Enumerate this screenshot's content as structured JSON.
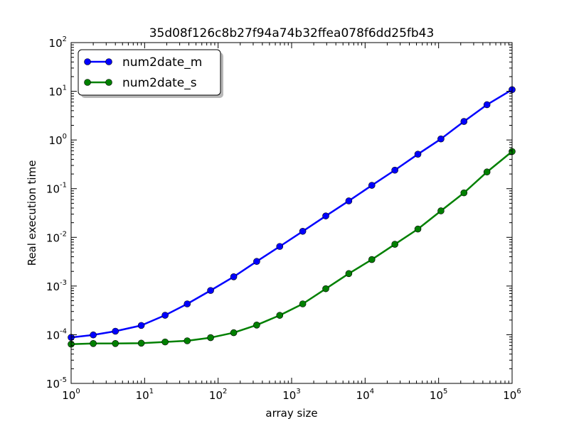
{
  "chart_data": {
    "type": "line",
    "title": "35d08f126c8b27f94a74b32ffea078f6dd25fb43",
    "xlabel": "array size",
    "ylabel": "Real execution time",
    "xscale": "log",
    "yscale": "log",
    "xlim": [
      1,
      1000000
    ],
    "ylim": [
      1e-05,
      100
    ],
    "x_ticks": [
      {
        "base": "10",
        "exp": "0"
      },
      {
        "base": "10",
        "exp": "1"
      },
      {
        "base": "10",
        "exp": "2"
      },
      {
        "base": "10",
        "exp": "3"
      },
      {
        "base": "10",
        "exp": "4"
      },
      {
        "base": "10",
        "exp": "5"
      },
      {
        "base": "10",
        "exp": "6"
      }
    ],
    "y_ticks": [
      {
        "base": "10",
        "exp": "-5"
      },
      {
        "base": "10",
        "exp": "-4"
      },
      {
        "base": "10",
        "exp": "-3"
      },
      {
        "base": "10",
        "exp": "-2"
      },
      {
        "base": "10",
        "exp": "-1"
      },
      {
        "base": "10",
        "exp": "0"
      },
      {
        "base": "10",
        "exp": "1"
      },
      {
        "base": "10",
        "exp": "2"
      }
    ],
    "grid": false,
    "legend_position": "top-left",
    "x": [
      1,
      2,
      4,
      9,
      19,
      38,
      79,
      163,
      335,
      689,
      1417,
      2916,
      6000,
      12344,
      25397,
      52254,
      107510,
      221200,
      455112,
      1000000
    ],
    "series": [
      {
        "name": "num2date_m",
        "color": "#0000ff",
        "values": [
          8.8e-05,
          9.9e-05,
          0.000118,
          0.000155,
          0.000251,
          0.00043,
          0.00081,
          0.00155,
          0.0032,
          0.0065,
          0.0133,
          0.0275,
          0.056,
          0.117,
          0.24,
          0.51,
          1.05,
          2.4,
          5.3,
          10.8
        ]
      },
      {
        "name": "num2date_s",
        "color": "#008000",
        "values": [
          6.4e-05,
          6.6e-05,
          6.6e-05,
          6.7e-05,
          7.1e-05,
          7.5e-05,
          8.7e-05,
          0.00011,
          0.000158,
          0.00025,
          0.00043,
          0.00088,
          0.0018,
          0.0035,
          0.0072,
          0.0148,
          0.035,
          0.082,
          0.22,
          0.58
        ]
      }
    ]
  }
}
